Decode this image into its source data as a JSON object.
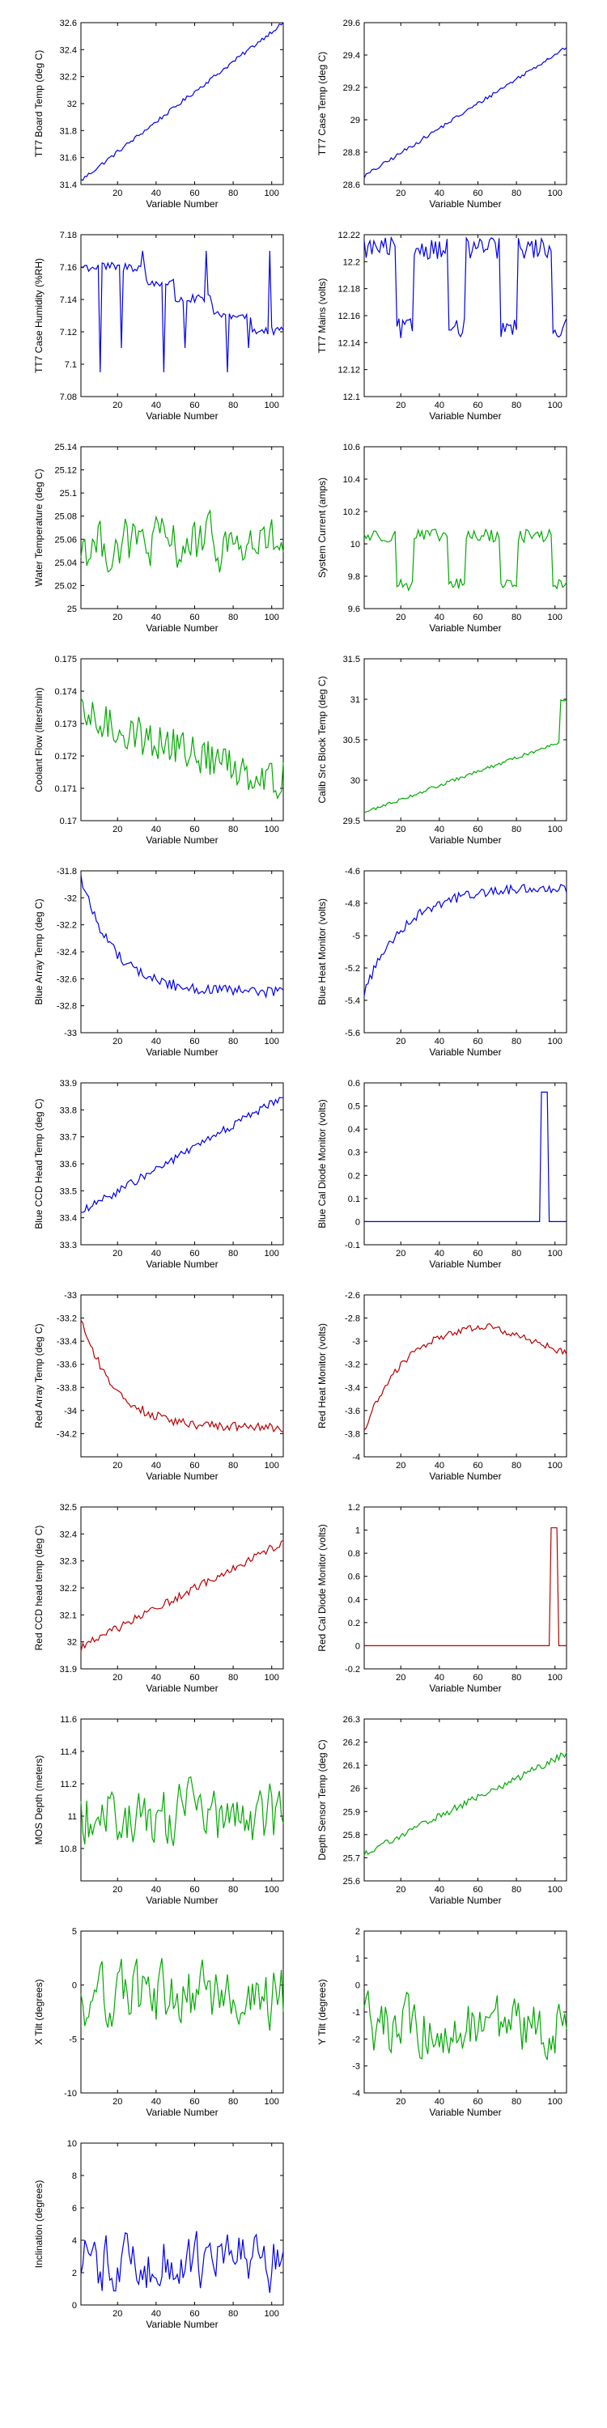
{
  "colors": {
    "blue": "#0000ee",
    "green": "#00aa00",
    "red": "#bb0000"
  },
  "chart_data": [
    {
      "type": "line",
      "id": "p1",
      "ylabel": "TT7 Board Temp (deg C)",
      "xlabel": "Variable Number",
      "xlim": [
        1,
        106
      ],
      "ylim": [
        31.4,
        32.6
      ],
      "xticks": [
        "20",
        "40",
        "60",
        "80",
        "100"
      ],
      "yticks": [
        "31.4",
        "31.6",
        "31.8",
        "32",
        "32.2",
        "32.4",
        "32.6"
      ],
      "color": "blue",
      "shape": "rise",
      "start": 31.43,
      "end": 32.6,
      "noise": 0.015
    },
    {
      "type": "line",
      "id": "p2",
      "ylabel": "TT7 Case Temp (deg C)",
      "xlabel": "Variable Number",
      "xlim": [
        1,
        106
      ],
      "ylim": [
        28.6,
        29.6
      ],
      "xticks": [
        "20",
        "40",
        "60",
        "80",
        "100"
      ],
      "yticks": [
        "28.6",
        "28.8",
        "29",
        "29.2",
        "29.4",
        "29.6"
      ],
      "color": "blue",
      "shape": "rise",
      "start": 28.65,
      "end": 29.45,
      "noise": 0.012
    },
    {
      "type": "line",
      "id": "p3",
      "ylabel": "TT7 Case Humidity (%RH)",
      "xlabel": "Variable Number",
      "xlim": [
        1,
        106
      ],
      "ylim": [
        7.08,
        7.18
      ],
      "xticks": [
        "20",
        "40",
        "60",
        "80",
        "100"
      ],
      "yticks": [
        "7.08",
        "7.1",
        "7.12",
        "7.14",
        "7.16",
        "7.18"
      ],
      "color": "blue",
      "shape": "steps",
      "levels": [
        [
          1,
          7.16
        ],
        [
          35,
          7.15
        ],
        [
          50,
          7.14
        ],
        [
          70,
          7.13
        ],
        [
          90,
          7.12
        ],
        [
          106,
          7.12
        ]
      ],
      "spikes": [
        7.17,
        7.11,
        7.095
      ],
      "noise": 0.003
    },
    {
      "type": "line",
      "id": "p4",
      "ylabel": "TT7 Mains  (volts)",
      "xlabel": "Variable Number",
      "xlim": [
        1,
        106
      ],
      "ylim": [
        12.1,
        12.22
      ],
      "xticks": [
        "20",
        "40",
        "60",
        "80",
        "100"
      ],
      "yticks": [
        "12.1",
        "12.12",
        "12.14",
        "12.16",
        "12.18",
        "12.2",
        "12.22"
      ],
      "color": "blue",
      "shape": "twolevel",
      "high": 12.21,
      "low": 12.15,
      "noise": 0.008
    },
    {
      "type": "line",
      "id": "p5",
      "ylabel": "Water Temperature (deg C)",
      "xlabel": "Variable Number",
      "xlim": [
        1,
        106
      ],
      "ylim": [
        25.0,
        25.14
      ],
      "xticks": [
        "20",
        "40",
        "60",
        "80",
        "100"
      ],
      "yticks": [
        "25",
        "25.02",
        "25.04",
        "25.06",
        "25.08",
        "25.1",
        "25.12",
        "25.14"
      ],
      "color": "green",
      "shape": "noise",
      "mean": 25.055,
      "noise": 0.02
    },
    {
      "type": "line",
      "id": "p6",
      "ylabel": "System Current (amps)",
      "xlabel": "Variable Number",
      "xlim": [
        1,
        106
      ],
      "ylim": [
        9.6,
        10.6
      ],
      "xticks": [
        "20",
        "40",
        "60",
        "80",
        "100"
      ],
      "yticks": [
        "9.6",
        "9.8",
        "10",
        "10.2",
        "10.4",
        "10.6"
      ],
      "color": "green",
      "shape": "twolevel",
      "high": 10.05,
      "low": 9.75,
      "noise": 0.04
    },
    {
      "type": "line",
      "id": "p7",
      "ylabel": "Coolant Flow (liters/min)",
      "xlabel": "Variable Number",
      "xlim": [
        1,
        106
      ],
      "ylim": [
        0.17,
        0.175
      ],
      "xticks": [
        "20",
        "40",
        "60",
        "80",
        "100"
      ],
      "yticks": [
        "0.17",
        "0.171",
        "0.172",
        "0.173",
        "0.174",
        "0.175"
      ],
      "color": "green",
      "shape": "fall",
      "start": 0.1732,
      "end": 0.1712,
      "noise": 0.0006
    },
    {
      "type": "line",
      "id": "p8",
      "ylabel": "Calib Src Block Temp (deg C)",
      "xlabel": "Variable Number",
      "xlim": [
        1,
        106
      ],
      "ylim": [
        29.5,
        31.5
      ],
      "xticks": [
        "20",
        "40",
        "60",
        "80",
        "100"
      ],
      "yticks": [
        "29.5",
        "30",
        "30.5",
        "31",
        "31.5"
      ],
      "color": "green",
      "shape": "rise",
      "start": 29.6,
      "end": 30.5,
      "noise": 0.02,
      "tail": 31.0
    },
    {
      "type": "line",
      "id": "p9",
      "ylabel": "Blue Array Temp (deg C)",
      "xlabel": "Variable Number",
      "xlim": [
        1,
        106
      ],
      "ylim": [
        -33,
        -31.8
      ],
      "xticks": [
        "20",
        "40",
        "60",
        "80",
        "100"
      ],
      "yticks": [
        "-33",
        "-32.8",
        "-32.6",
        "-32.4",
        "-32.2",
        "-32",
        "-31.8"
      ],
      "color": "blue",
      "shape": "decay",
      "start": -31.85,
      "end": -32.7,
      "noise": 0.04
    },
    {
      "type": "line",
      "id": "p10",
      "ylabel": "Blue Heat Monitor (volts)",
      "xlabel": "Variable Number",
      "xlim": [
        1,
        106
      ],
      "ylim": [
        -5.6,
        -4.6
      ],
      "xticks": [
        "20",
        "40",
        "60",
        "80",
        "100"
      ],
      "yticks": [
        "-5.6",
        "-5.4",
        "-5.2",
        "-5",
        "-4.8",
        "-4.6"
      ],
      "color": "blue",
      "shape": "growth",
      "start": -5.35,
      "end": -4.7,
      "noise": 0.03
    },
    {
      "type": "line",
      "id": "p11",
      "ylabel": "Blue CCD Head Temp (deg C)",
      "xlabel": "Variable Number",
      "xlim": [
        1,
        106
      ],
      "ylim": [
        33.3,
        33.9
      ],
      "xticks": [
        "20",
        "40",
        "60",
        "80",
        "100"
      ],
      "yticks": [
        "33.3",
        "33.4",
        "33.5",
        "33.6",
        "33.7",
        "33.8",
        "33.9"
      ],
      "color": "blue",
      "shape": "rise",
      "start": 33.42,
      "end": 33.85,
      "noise": 0.015
    },
    {
      "type": "line",
      "id": "p12",
      "ylabel": "Blue Cal Diode Monitor (volts)",
      "xlabel": "Variable Number",
      "xlim": [
        1,
        106
      ],
      "ylim": [
        -0.1,
        0.6
      ],
      "xticks": [
        "20",
        "40",
        "60",
        "80",
        "100"
      ],
      "yticks": [
        "-0.1",
        "0",
        "0.1",
        "0.2",
        "0.3",
        "0.4",
        "0.5",
        "0.6"
      ],
      "color": "blue",
      "shape": "pulse",
      "base": 0.0,
      "peak": 0.56,
      "at": [
        93,
        96
      ]
    },
    {
      "type": "line",
      "id": "p13",
      "ylabel": "Red Array Temp (deg C)",
      "xlabel": "Variable Number",
      "xlim": [
        1,
        106
      ],
      "ylim": [
        -34.4,
        -33
      ],
      "xticks": [
        "20",
        "40",
        "60",
        "80",
        "100"
      ],
      "yticks": [
        "-34.2",
        "-34",
        "-33.8",
        "-33.6",
        "-33.4",
        "-33.2",
        "-33"
      ],
      "color": "red",
      "shape": "decay",
      "start": -33.2,
      "end": -34.15,
      "noise": 0.04
    },
    {
      "type": "line",
      "id": "p14",
      "ylabel": "Red Heat Monitor (volts)",
      "xlabel": "Variable Number",
      "xlim": [
        1,
        106
      ],
      "ylim": [
        -4,
        -2.6
      ],
      "xticks": [
        "20",
        "40",
        "60",
        "80",
        "100"
      ],
      "yticks": [
        "-4",
        "-3.8",
        "-3.6",
        "-3.4",
        "-3.2",
        "-3",
        "-2.8",
        "-2.6"
      ],
      "color": "red",
      "shape": "arch",
      "start": -3.78,
      "peak": -2.82,
      "end": -3.1,
      "noise": 0.03
    },
    {
      "type": "line",
      "id": "p15",
      "ylabel": "Red CCD head temp (deg C)",
      "xlabel": "Variable Number",
      "xlim": [
        1,
        106
      ],
      "ylim": [
        31.9,
        32.5
      ],
      "xticks": [
        "20",
        "40",
        "60",
        "80",
        "100"
      ],
      "yticks": [
        "31.9",
        "32",
        "32.1",
        "32.2",
        "32.3",
        "32.4",
        "32.5"
      ],
      "color": "red",
      "shape": "rise",
      "start": 31.98,
      "end": 32.37,
      "noise": 0.015
    },
    {
      "type": "line",
      "id": "p16",
      "ylabel": "Red Cal Diode Monitor (volts)",
      "xlabel": "Variable Number",
      "xlim": [
        1,
        106
      ],
      "ylim": [
        -0.2,
        1.2
      ],
      "xticks": [
        "20",
        "40",
        "60",
        "80",
        "100"
      ],
      "yticks": [
        "-0.2",
        "0",
        "0.2",
        "0.4",
        "0.6",
        "0.8",
        "1",
        "1.2"
      ],
      "color": "red",
      "shape": "pulse",
      "base": 0.0,
      "peak": 1.02,
      "at": [
        98,
        101
      ]
    },
    {
      "type": "line",
      "id": "p17",
      "ylabel": "MOS Depth  (meters)",
      "xlabel": "Variable Number",
      "xlim": [
        1,
        106
      ],
      "ylim": [
        10.6,
        11.6
      ],
      "xticks": [
        "20",
        "40",
        "60",
        "80",
        "100"
      ],
      "yticks": [
        "10.8",
        "11",
        "11.2",
        "11.4",
        "11.6"
      ],
      "color": "green",
      "shape": "noise",
      "mean": 11.0,
      "noise": 0.17
    },
    {
      "type": "line",
      "id": "p18",
      "ylabel": "Depth Sensor Temp (deg C)",
      "xlabel": "Variable Number",
      "xlim": [
        1,
        106
      ],
      "ylim": [
        25.6,
        26.3
      ],
      "xticks": [
        "20",
        "40",
        "60",
        "80",
        "100"
      ],
      "yticks": [
        "25.6",
        "25.7",
        "25.8",
        "25.9",
        "26",
        "26.1",
        "26.2",
        "26.3"
      ],
      "color": "green",
      "shape": "rise",
      "start": 25.72,
      "end": 26.15,
      "noise": 0.015
    },
    {
      "type": "line",
      "id": "p19",
      "ylabel": "X Tilt  (degrees)",
      "xlabel": "Variable Number",
      "xlim": [
        1,
        106
      ],
      "ylim": [
        -10,
        5
      ],
      "xticks": [
        "20",
        "40",
        "60",
        "80",
        "100"
      ],
      "yticks": [
        "-10",
        "-5",
        "0",
        "5"
      ],
      "color": "green",
      "shape": "noise",
      "mean": -1.0,
      "noise": 2.6
    },
    {
      "type": "line",
      "id": "p20",
      "ylabel": "Y Tilt  (degrees)",
      "xlabel": "Variable Number",
      "xlim": [
        1,
        106
      ],
      "ylim": [
        -4,
        2
      ],
      "xticks": [
        "20",
        "40",
        "60",
        "80",
        "100"
      ],
      "yticks": [
        "-4",
        "-3",
        "-2",
        "-1",
        "0",
        "1",
        "2"
      ],
      "color": "green",
      "shape": "noise",
      "mean": -1.6,
      "noise": 0.95
    },
    {
      "type": "line",
      "id": "p21",
      "ylabel": "Inclination  (degrees)",
      "xlabel": "Variable Number",
      "xlim": [
        1,
        106
      ],
      "ylim": [
        0,
        10
      ],
      "xticks": [
        "20",
        "40",
        "60",
        "80",
        "100"
      ],
      "yticks": [
        "0",
        "2",
        "4",
        "6",
        "8",
        "10"
      ],
      "color": "blue",
      "shape": "noise",
      "mean": 2.6,
      "noise": 1.6
    }
  ]
}
